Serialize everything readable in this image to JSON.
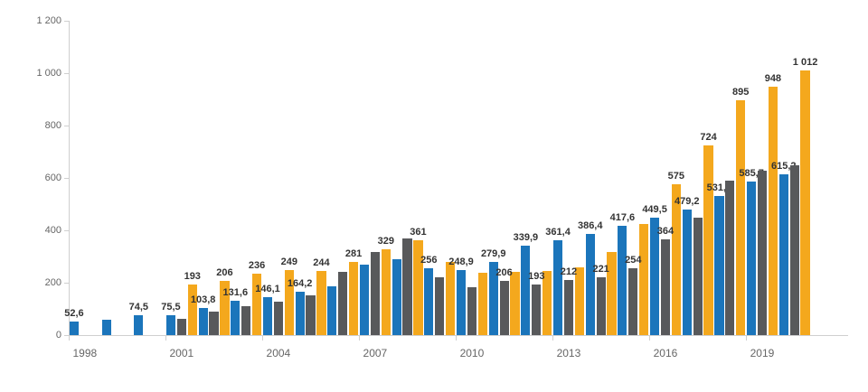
{
  "chart_data": {
    "type": "bar",
    "title": "",
    "legend": "none",
    "grid": "off",
    "number_format": "european (comma decimals, space thousands)",
    "categories": [
      1998,
      1999,
      2000,
      2001,
      2002,
      2003,
      2004,
      2005,
      2006,
      2007,
      2008,
      2009,
      2010,
      2011,
      2012,
      2013,
      2014,
      2015,
      2016,
      2017,
      2018,
      2019,
      2020
    ],
    "series": [
      {
        "name": "blue-series",
        "color": "#1b75bb",
        "values": [
          52.6,
          60,
          74.5,
          75.5,
          103.8,
          131.6,
          146.1,
          164.2,
          185,
          268,
          288,
          256,
          248.9,
          279.9,
          339.9,
          361.4,
          386.4,
          417.6,
          449.5,
          479.2,
          531.7,
          585.7,
          615.2
        ],
        "labels": [
          "52,6",
          null,
          "74,5",
          "75,5",
          "103,8",
          "131,6",
          "146,1",
          "164,2",
          null,
          null,
          null,
          "256",
          "248,9",
          "279,9",
          "339,9",
          "361,4",
          "386,4",
          "417,6",
          "449,5",
          "479,2",
          "531,7",
          "585,7",
          "615,2"
        ]
      },
      {
        "name": "gray-series",
        "color": "#58595b",
        "values": [
          null,
          null,
          null,
          62,
          90,
          110,
          127,
          153,
          240,
          316,
          368,
          222,
          182,
          206,
          193,
          212,
          221,
          254,
          364,
          450,
          590,
          627,
          650
        ],
        "labels": [
          null,
          null,
          null,
          null,
          null,
          null,
          null,
          null,
          null,
          null,
          null,
          null,
          null,
          "206",
          "193",
          "212",
          "221",
          "254",
          "364",
          null,
          null,
          null,
          null
        ]
      },
      {
        "name": "yellow-series",
        "color": "#f4a81d",
        "values": [
          null,
          null,
          null,
          193,
          206,
          236,
          249,
          244,
          281,
          329,
          361,
          280,
          238,
          240,
          245,
          260,
          317,
          425,
          575,
          724,
          895,
          948,
          1012
        ],
        "labels": [
          null,
          null,
          null,
          "193",
          "206",
          "236",
          "249",
          "244",
          "281",
          "329",
          "361",
          null,
          null,
          null,
          null,
          null,
          null,
          null,
          "575",
          "724",
          "895",
          "948",
          "1 012"
        ]
      }
    ],
    "y_axis": {
      "min": 0,
      "max": 1200,
      "tick_interval": 200,
      "tick_labels": [
        "0",
        "200",
        "400",
        "600",
        "800",
        "1 000",
        "1 200"
      ]
    },
    "x_axis": {
      "labeled_category_indices": [
        0,
        3,
        6,
        9,
        12,
        15,
        18,
        21
      ],
      "tick_labels": [
        "1998",
        "2001",
        "2004",
        "2007",
        "2010",
        "2013",
        "2016",
        "2019"
      ]
    }
  }
}
